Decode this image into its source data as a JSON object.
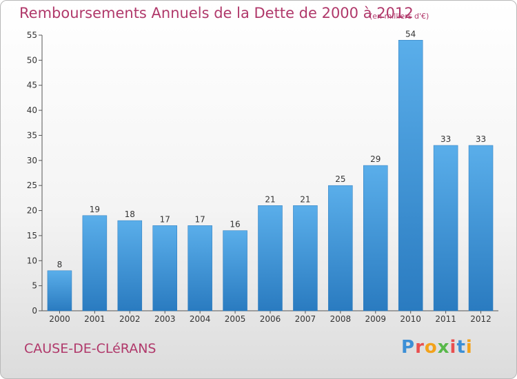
{
  "chart_data": {
    "type": "bar",
    "title": "Remboursements Annuels de la Dette de 2000 à 2012",
    "unit": "(en milliers d'€)",
    "categories": [
      "2000",
      "2001",
      "2002",
      "2003",
      "2004",
      "2005",
      "2006",
      "2007",
      "2008",
      "2009",
      "2010",
      "2011",
      "2012"
    ],
    "values": [
      8,
      19,
      18,
      17,
      17,
      16,
      21,
      21,
      25,
      29,
      54,
      33,
      33
    ],
    "ylim": [
      0,
      55
    ],
    "yticks": [
      0,
      5,
      10,
      15,
      20,
      25,
      30,
      35,
      40,
      45,
      50,
      55
    ],
    "grid": false,
    "bar_color": "#3c93d8"
  },
  "commune": "CAUSE-DE-CLéRANS",
  "logo": {
    "letters": [
      "P",
      "r",
      "o",
      "x",
      "i",
      "t",
      "i"
    ],
    "colors": [
      "#3c8fd6",
      "#e94f4f",
      "#f3a21b",
      "#58b84a",
      "#e94f4f",
      "#3c8fd6",
      "#f3a21b"
    ]
  }
}
